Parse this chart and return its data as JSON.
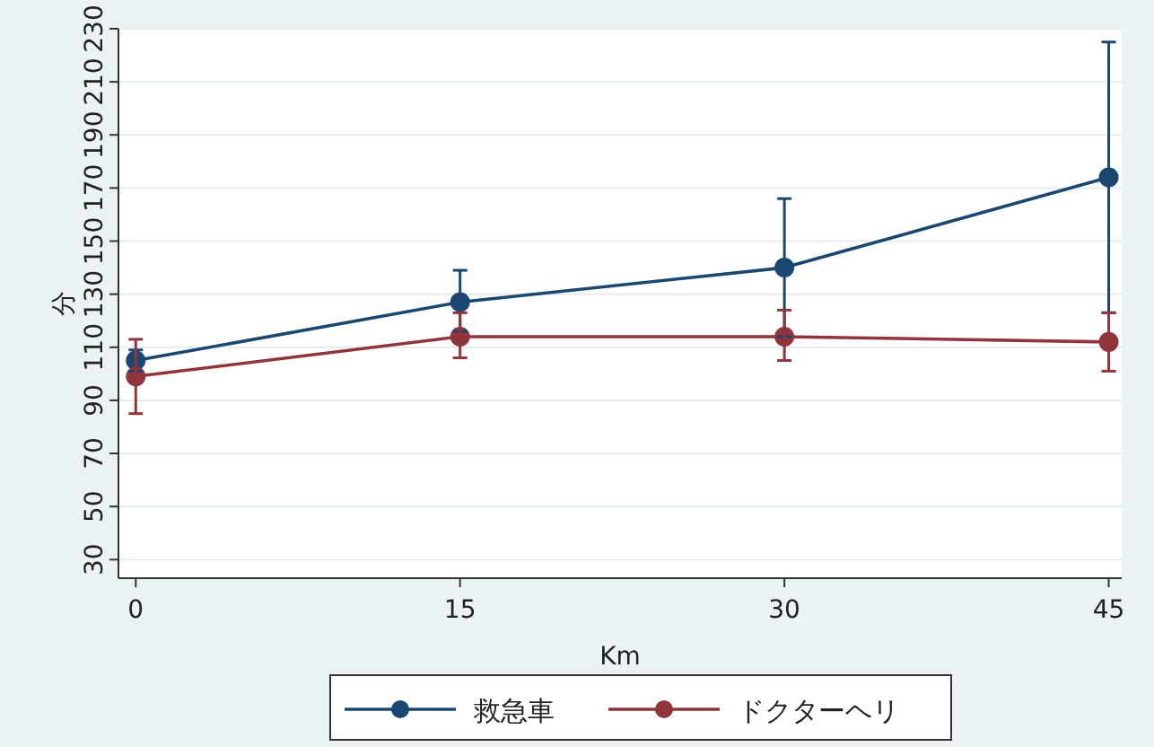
{
  "chart_data": {
    "type": "line",
    "xlabel": "Km",
    "ylabel": "分",
    "x": [
      0,
      15,
      30,
      45
    ],
    "xlim": [
      -0.8,
      45.6
    ],
    "xticks": [
      0,
      15,
      30,
      45
    ],
    "ylim": [
      23,
      230
    ],
    "yticks": [
      30,
      50,
      70,
      90,
      110,
      130,
      150,
      170,
      190,
      210,
      230
    ],
    "grid": "y",
    "legend": "bottom",
    "marker": "circle",
    "line_style": "solid",
    "series": [
      {
        "name": "救急車",
        "color": "#1a476f",
        "values": [
          105,
          127,
          140,
          174
        ],
        "errors": [
          [
            101,
            109
          ],
          [
            116,
            139
          ],
          [
            114,
            166
          ],
          [
            123,
            225
          ]
        ]
      },
      {
        "name": "ドクターヘリ",
        "color": "#90353b",
        "values": [
          99,
          114,
          114,
          112
        ],
        "errors": [
          [
            85,
            113
          ],
          [
            106,
            123
          ],
          [
            105,
            124
          ],
          [
            101,
            123
          ]
        ]
      }
    ]
  }
}
